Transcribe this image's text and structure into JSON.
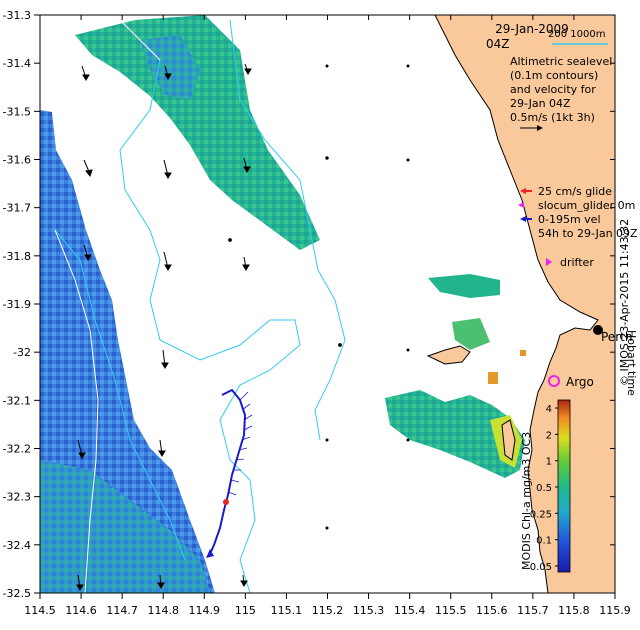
{
  "map": {
    "date": "29-Jan-2009",
    "time": "04Z",
    "scale_bar": "200  1000m",
    "legend_lines": [
      "Altimetric sealevel",
      "(0.1m contours)",
      "and velocity for",
      "29-Jan 04Z",
      "0.5m/s (1kt 3h)"
    ],
    "glider_legend": [
      "25 cm/s glide",
      "slocum_glider 0m",
      "0-195m vel",
      "54h to 29-Jan 09Z"
    ],
    "drifter_label": "drifter",
    "argo_label": "Argo",
    "city_label": "Perth",
    "hobart_label": "Hobart time",
    "colorbar_title": "MODIS Chl-a mg/m3 OC3",
    "colorbar_ticks": [
      "4",
      "2",
      "1",
      "0.5",
      "0.25",
      "0.1",
      "0.05"
    ],
    "credit": "© IMOS 23-Apr-2015 11:43:32",
    "x_ticks": [
      "114.5",
      "114.6",
      "114.7",
      "114.8",
      "114.9",
      "115",
      "115.1",
      "115.2",
      "115.3",
      "115.4",
      "115.5",
      "115.6",
      "115.7",
      "115.8",
      "115.9"
    ],
    "y_ticks": [
      "-31.3",
      "-31.4",
      "-31.5",
      "-31.6",
      "-31.7",
      "-31.8",
      "-31.9",
      "-32",
      "-32.1",
      "-32.2",
      "-32.3",
      "-32.4",
      "-32.5"
    ],
    "colors": {
      "land": "#f9c89b",
      "contour": "#33ccee",
      "track": "#1a1acc",
      "glider_red": "#ee2222",
      "magenta": "#ee22ee"
    }
  }
}
